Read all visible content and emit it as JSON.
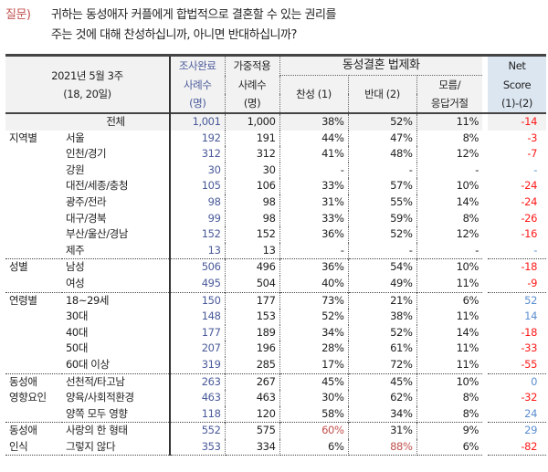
{
  "question": {
    "label": "질문)",
    "line1": "귀하는 동성애자 커플에게 합법적으로 결혼할 수 있는 권리를",
    "line2": "주는 것에 대해 찬성하십니까, 아니면 반대하십니까?"
  },
  "header": {
    "date_line1": "2021년 5월 3주",
    "date_line2": "(18, 20일)",
    "col_completed": [
      "조사완료",
      "사례수",
      "(명)"
    ],
    "col_weighted": [
      "가중적용",
      "사례수",
      "(명)"
    ],
    "group": "동성결혼 법제화",
    "favor": "찬성 (1)",
    "oppose": "반대 (2)",
    "dk": [
      "모름/",
      "응답거절"
    ],
    "net": [
      "Net",
      "Score",
      "(1)-(2)"
    ]
  },
  "colors": {
    "net_positive": "#5b8fd0",
    "net_negative": "#ff1a1a",
    "highlight": "#c0504d",
    "header_bg": "#f2f2f2",
    "net_header_bg": "#dce6f1"
  },
  "rows": [
    {
      "group": "",
      "label": "전체",
      "n": "1,001",
      "w": "1,000",
      "favor": "38%",
      "oppose": "52%",
      "dk": "11%",
      "net": "-14",
      "total": true
    },
    {
      "group": "지역별",
      "label": "서울",
      "n": "192",
      "w": "191",
      "favor": "44%",
      "oppose": "47%",
      "dk": "8%",
      "net": "-3"
    },
    {
      "group": "",
      "label": "인천/경기",
      "n": "312",
      "w": "312",
      "favor": "41%",
      "oppose": "48%",
      "dk": "12%",
      "net": "-7"
    },
    {
      "group": "",
      "label": "강원",
      "n": "30",
      "w": "30",
      "favor": "-",
      "oppose": "-",
      "dk": "-",
      "net": "-"
    },
    {
      "group": "",
      "label": "대전/세종/충청",
      "n": "105",
      "w": "106",
      "favor": "33%",
      "oppose": "57%",
      "dk": "10%",
      "net": "-24"
    },
    {
      "group": "",
      "label": "광주/전라",
      "n": "98",
      "w": "98",
      "favor": "31%",
      "oppose": "55%",
      "dk": "14%",
      "net": "-24"
    },
    {
      "group": "",
      "label": "대구/경북",
      "n": "99",
      "w": "98",
      "favor": "33%",
      "oppose": "59%",
      "dk": "8%",
      "net": "-26"
    },
    {
      "group": "",
      "label": "부산/울산/경남",
      "n": "152",
      "w": "152",
      "favor": "36%",
      "oppose": "52%",
      "dk": "12%",
      "net": "-16"
    },
    {
      "group": "",
      "label": "제주",
      "n": "13",
      "w": "13",
      "favor": "-",
      "oppose": "-",
      "dk": "-",
      "net": "-"
    },
    {
      "group": "성별",
      "label": "남성",
      "n": "506",
      "w": "496",
      "favor": "36%",
      "oppose": "54%",
      "dk": "10%",
      "net": "-18",
      "sep": true
    },
    {
      "group": "",
      "label": "여성",
      "n": "495",
      "w": "504",
      "favor": "40%",
      "oppose": "49%",
      "dk": "11%",
      "net": "-9"
    },
    {
      "group": "연령별",
      "label": "18~29세",
      "n": "150",
      "w": "177",
      "favor": "73%",
      "oppose": "21%",
      "dk": "6%",
      "net": "52",
      "sep": true
    },
    {
      "group": "",
      "label": "30대",
      "n": "148",
      "w": "153",
      "favor": "52%",
      "oppose": "38%",
      "dk": "11%",
      "net": "14"
    },
    {
      "group": "",
      "label": "40대",
      "n": "177",
      "w": "189",
      "favor": "34%",
      "oppose": "52%",
      "dk": "14%",
      "net": "-18"
    },
    {
      "group": "",
      "label": "50대",
      "n": "207",
      "w": "196",
      "favor": "28%",
      "oppose": "61%",
      "dk": "11%",
      "net": "-33"
    },
    {
      "group": "",
      "label": "60대 이상",
      "n": "319",
      "w": "285",
      "favor": "17%",
      "oppose": "72%",
      "dk": "11%",
      "net": "-55"
    },
    {
      "group": "동성애",
      "label": "선천적/타고남",
      "n": "263",
      "w": "267",
      "favor": "45%",
      "oppose": "45%",
      "dk": "10%",
      "net": "0",
      "sep": true
    },
    {
      "group": "영향요인",
      "label": "양육/사회적환경",
      "n": "463",
      "w": "463",
      "favor": "30%",
      "oppose": "62%",
      "dk": "8%",
      "net": "-32"
    },
    {
      "group": "",
      "label": "양쪽 모두 영향",
      "n": "118",
      "w": "120",
      "favor": "58%",
      "oppose": "34%",
      "dk": "8%",
      "net": "24"
    },
    {
      "group": "동성애",
      "label": "사랑의 한 형태",
      "n": "552",
      "w": "575",
      "favor": "60%",
      "oppose": "31%",
      "dk": "9%",
      "net": "29",
      "sep": true,
      "hl": "favor"
    },
    {
      "group": "인식",
      "label": "그렇지 않다",
      "n": "353",
      "w": "334",
      "favor": "6%",
      "oppose": "88%",
      "dk": "6%",
      "net": "-82",
      "hl": "oppose",
      "last": true
    }
  ]
}
